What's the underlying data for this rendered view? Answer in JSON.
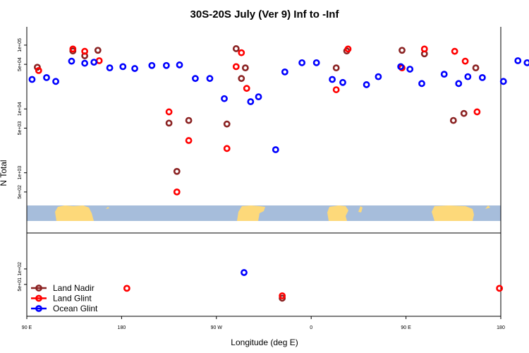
{
  "chart_data": {
    "type": "scatter",
    "title": "30S-20S July (Ver 9)   Inf to -Inf",
    "xlabel": "Longitude (deg E)",
    "ylabel": "N Total",
    "x_axis": {
      "range": [
        90,
        450
      ],
      "ticks": [
        90,
        180,
        270,
        360,
        450
      ],
      "tick_labels": [
        "90 E",
        "180",
        "90 W",
        "0",
        "90 E",
        "180"
      ],
      "tick_positions": [
        90,
        180,
        270,
        360,
        450,
        540
      ]
    },
    "top_panel": {
      "scale": "log",
      "ylim": [
        180,
        150000
      ],
      "ticks": [
        500,
        1000,
        5000,
        10000,
        50000,
        100000
      ],
      "tick_labels": [
        "5e+02",
        "1e+03",
        "5e+03",
        "1e+04",
        "5e+04",
        "1e+05"
      ],
      "series": [
        {
          "name": "Land Nadir",
          "color": "#8b2323",
          "x": [
            98,
            125,
            134,
            144,
            198,
            204,
            213,
            242,
            249,
            253,
            256,
            325,
            333,
            375,
            392,
            414,
            422,
            431
          ],
          "y": [
            45000,
            81000,
            68000,
            83000,
            6000,
            1050,
            6600,
            5800,
            88000,
            30000,
            44000,
            44000,
            81000,
            83000,
            73000,
            6600,
            8500,
            44000
          ]
        },
        {
          "name": "Land Glint",
          "color": "#ff0000",
          "x": [
            99,
            125,
            134,
            145,
            198,
            204,
            213,
            242,
            249,
            253,
            257,
            325,
            334,
            375,
            392,
            415,
            423,
            432
          ],
          "y": [
            40000,
            87000,
            80000,
            57000,
            9000,
            500,
            3200,
            2400,
            46000,
            76000,
            21000,
            20000,
            87000,
            44000,
            87000,
            80000,
            56000,
            9000
          ]
        },
        {
          "name": "Ocean Glint",
          "color": "#0000ff",
          "x": [
            94,
            105,
            112,
            124,
            134,
            141,
            153,
            163,
            172,
            185,
            196,
            206,
            218,
            229,
            240,
            260,
            266,
            279,
            286,
            299,
            310,
            322,
            330,
            348,
            357,
            374,
            381,
            390,
            407,
            418,
            425,
            436,
            452,
            463,
            470
          ],
          "y": [
            29000,
            31000,
            27000,
            56000,
            52000,
            54000,
            44000,
            46000,
            43000,
            48000,
            48000,
            49000,
            30000,
            30000,
            14500,
            13000,
            15500,
            2300,
            38000,
            53000,
            53000,
            29000,
            26000,
            24000,
            32000,
            46000,
            42000,
            25000,
            35000,
            25000,
            32000,
            31000,
            27000,
            57000,
            53000
          ]
        }
      ]
    },
    "bottom_panel": {
      "scale": "log",
      "ylim": [
        12,
        500
      ],
      "ticks": [
        50,
        100
      ],
      "tick_labels": [
        "5e+01",
        "1e+02"
      ],
      "series": [
        {
          "name": "Land Nadir",
          "color": "#8b2323",
          "x": [
            284
          ],
          "y": [
            27
          ]
        },
        {
          "name": "Land Glint",
          "color": "#ff0000",
          "x": [
            166,
            284,
            449
          ],
          "y": [
            42,
            30,
            42
          ]
        },
        {
          "name": "Ocean Glint",
          "color": "#0000ff",
          "x": [
            255
          ],
          "y": [
            85
          ]
        }
      ]
    },
    "legend": {
      "placement": "bottom-left",
      "entries": [
        {
          "label": "Land Nadir",
          "color": "#8b2323"
        },
        {
          "label": "Land Glint",
          "color": "#ff0000"
        },
        {
          "label": "Ocean Glint",
          "color": "#0000ff"
        }
      ]
    },
    "map_strip": {
      "ocean_color": "#a6bddb",
      "land_color": "#fdd97a"
    }
  }
}
